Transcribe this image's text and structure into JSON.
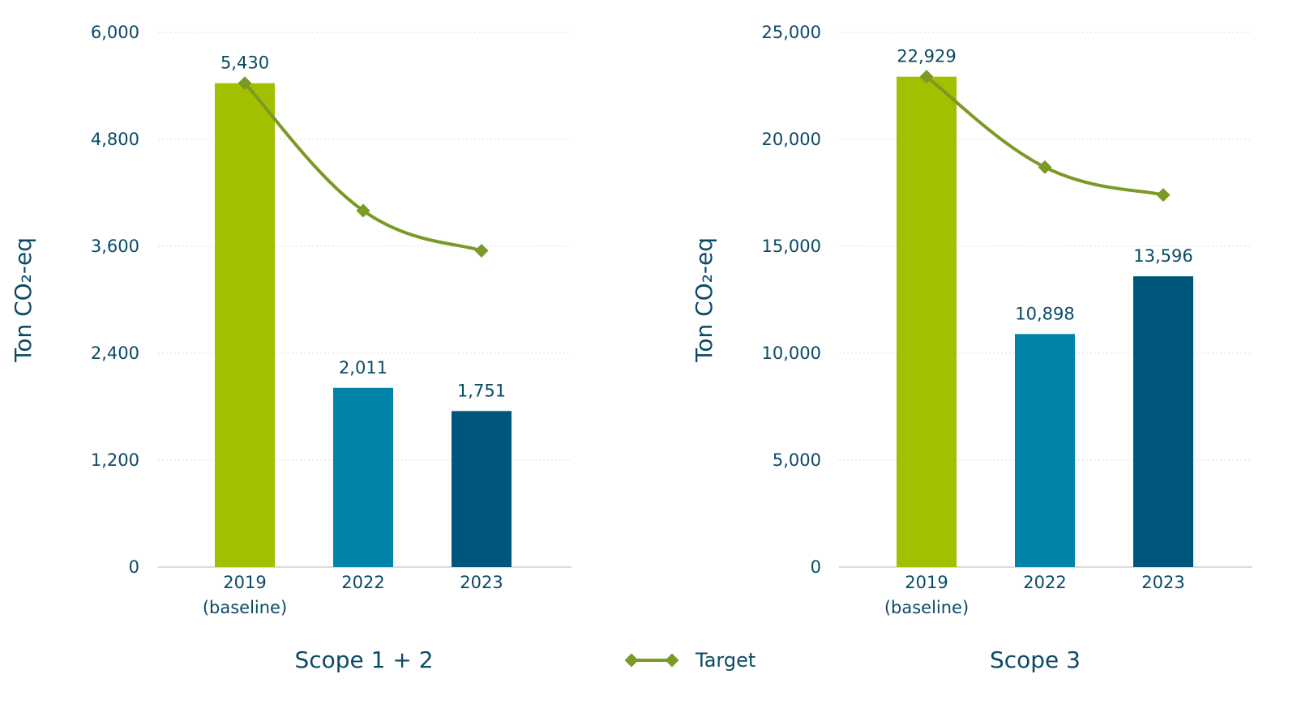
{
  "chart_data": [
    {
      "type": "bar",
      "title": "Scope 1 + 2",
      "xlabel": "",
      "ylabel": "Ton CO₂-eq",
      "ylim": [
        0,
        6000
      ],
      "yticks": [
        "0",
        "1,200",
        "2,400",
        "3,600",
        "4,800",
        "6,000"
      ],
      "ytick_values": [
        0,
        1200,
        2400,
        3600,
        4800,
        6000
      ],
      "categories": [
        [
          "2019",
          "(baseline)"
        ],
        [
          "2022"
        ],
        [
          "2023"
        ]
      ],
      "values": [
        5430,
        2011,
        1751
      ],
      "value_labels": [
        "5,430",
        "2,011",
        "1,751"
      ],
      "bar_colors": [
        "#a3c000",
        "#0083a9",
        "#00557a"
      ],
      "target": {
        "name": "Target",
        "values": [
          5430,
          4000,
          3550
        ]
      },
      "grid": true
    },
    {
      "type": "bar",
      "title": "Scope 3",
      "xlabel": "",
      "ylabel": "Ton CO₂-eq",
      "ylim": [
        0,
        25000
      ],
      "yticks": [
        "0",
        "5,000",
        "10,000",
        "15,000",
        "20,000",
        "25,000"
      ],
      "ytick_values": [
        0,
        5000,
        10000,
        15000,
        20000,
        25000
      ],
      "categories": [
        [
          "2019",
          "(baseline)"
        ],
        [
          "2022"
        ],
        [
          "2023"
        ]
      ],
      "values": [
        22929,
        10898,
        13596
      ],
      "value_labels": [
        "22,929",
        "10,898",
        "13,596"
      ],
      "bar_colors": [
        "#a3c000",
        "#0083a9",
        "#00557a"
      ],
      "target": {
        "name": "Target",
        "values": [
          22929,
          18700,
          17400
        ]
      },
      "grid": true
    }
  ],
  "legend": {
    "label": "Target",
    "position": "bottom-center"
  },
  "colors": {
    "axis_text": "#0b4a66",
    "gridline": "#dcdcdc",
    "target_line": "#7a9a25"
  }
}
